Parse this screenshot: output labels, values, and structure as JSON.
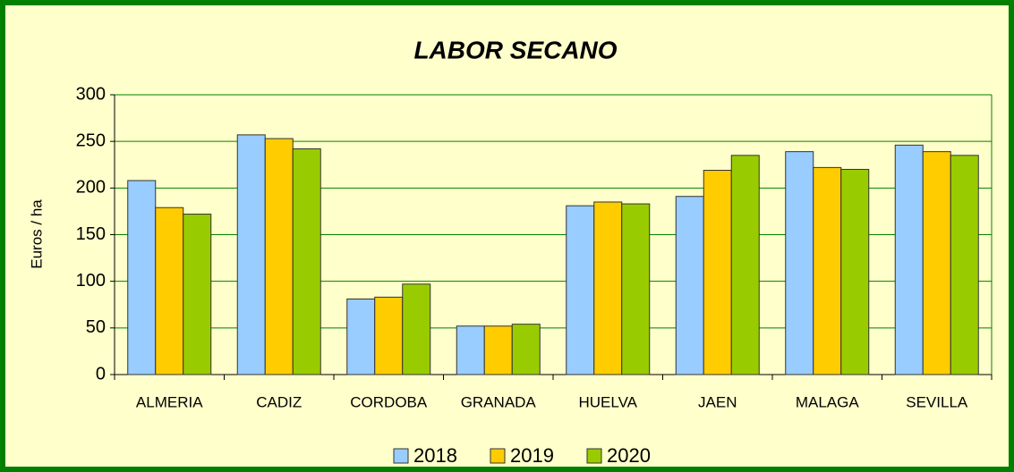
{
  "chart_data": {
    "type": "bar",
    "title": "LABOR SECANO",
    "y_label": "Euros / ha",
    "categories": [
      "ALMERIA",
      "CADIZ",
      "CORDOBA",
      "GRANADA",
      "HUELVA",
      "JAEN",
      "MALAGA",
      "SEVILLA"
    ],
    "series": [
      {
        "name": "2018",
        "color": "#99ccff",
        "values": [
          208,
          257,
          81,
          52,
          181,
          191,
          239,
          246
        ]
      },
      {
        "name": "2019",
        "color": "#ffcc00",
        "values": [
          179,
          253,
          83,
          52,
          185,
          219,
          222,
          239
        ]
      },
      {
        "name": "2020",
        "color": "#99cc00",
        "values": [
          172,
          242,
          97,
          54,
          183,
          235,
          220,
          235
        ]
      }
    ],
    "ylim": [
      0,
      300
    ],
    "yticks": [
      0,
      50,
      100,
      150,
      200,
      250,
      300
    ],
    "grid": true,
    "legend": "bottom"
  }
}
